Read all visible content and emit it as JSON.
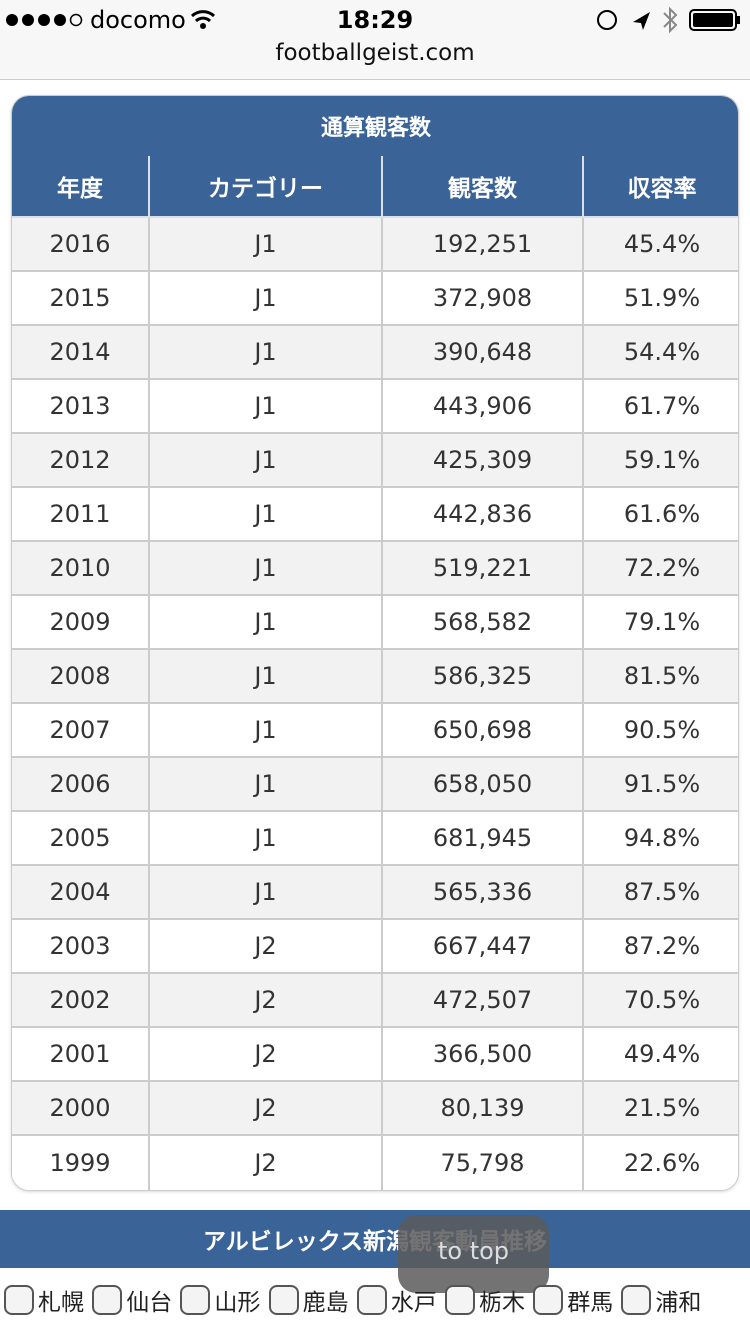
{
  "status": {
    "carrier": "docomo",
    "time": "18:29",
    "url": "footballgeist.com"
  },
  "table": {
    "title": "通算観客数",
    "headers": [
      "年度",
      "カテゴリー",
      "観客数",
      "収容率"
    ],
    "rows": [
      [
        "2016",
        "J1",
        "192,251",
        "45.4%"
      ],
      [
        "2015",
        "J1",
        "372,908",
        "51.9%"
      ],
      [
        "2014",
        "J1",
        "390,648",
        "54.4%"
      ],
      [
        "2013",
        "J1",
        "443,906",
        "61.7%"
      ],
      [
        "2012",
        "J1",
        "425,309",
        "59.1%"
      ],
      [
        "2011",
        "J1",
        "442,836",
        "61.6%"
      ],
      [
        "2010",
        "J1",
        "519,221",
        "72.2%"
      ],
      [
        "2009",
        "J1",
        "568,582",
        "79.1%"
      ],
      [
        "2008",
        "J1",
        "586,325",
        "81.5%"
      ],
      [
        "2007",
        "J1",
        "650,698",
        "90.5%"
      ],
      [
        "2006",
        "J1",
        "658,050",
        "91.5%"
      ],
      [
        "2005",
        "J1",
        "681,945",
        "94.8%"
      ],
      [
        "2004",
        "J1",
        "565,336",
        "87.5%"
      ],
      [
        "2003",
        "J2",
        "667,447",
        "87.2%"
      ],
      [
        "2002",
        "J2",
        "472,507",
        "70.5%"
      ],
      [
        "2001",
        "J2",
        "366,500",
        "49.4%"
      ],
      [
        "2000",
        "J2",
        "80,139",
        "21.5%"
      ],
      [
        "1999",
        "J2",
        "75,798",
        "22.6%"
      ]
    ]
  },
  "section": {
    "title": "アルビレックス新潟観客動員推移"
  },
  "button": {
    "label": "to top"
  },
  "filters": [
    "札幌",
    "仙台",
    "山形",
    "鹿島",
    "水戸",
    "栃木",
    "群馬",
    "浦和"
  ]
}
